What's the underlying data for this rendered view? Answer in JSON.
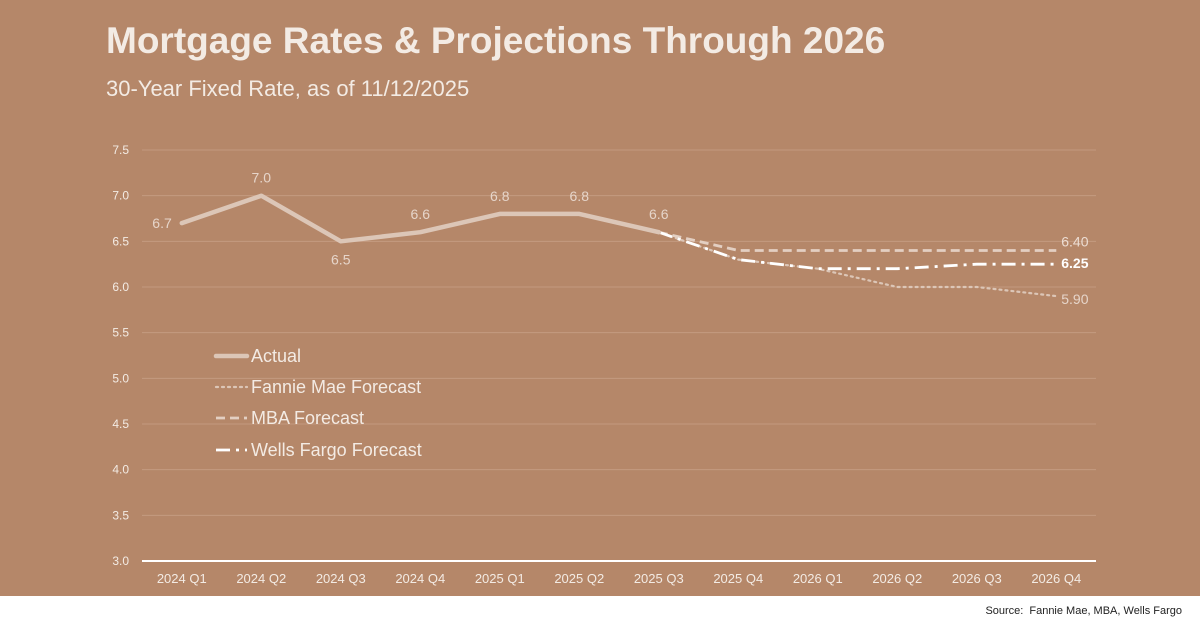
{
  "title": "Mortgage Rates & Projections Through 2026",
  "subtitle": "30-Year Fixed Rate, as of 11/12/2025",
  "source_label": "Source:",
  "source_value": "Fannie Mae, MBA, Wells Fargo",
  "colors": {
    "background": "#b58769",
    "grid": "#c49a80",
    "axis": "#ffffff",
    "tick_text": "#f3ebe4",
    "actual": "#dcc6b7",
    "fannie": "#dcc6b7",
    "mba": "#e3cfc2",
    "wells": "#ffffff"
  },
  "chart_data": {
    "type": "line",
    "title": "Mortgage Rates & Projections Through 2026",
    "subtitle": "30-Year Fixed Rate, as of 11/12/2025",
    "xlabel": "",
    "ylabel": "",
    "categories": [
      "2024 Q1",
      "2024 Q2",
      "2024 Q3",
      "2024 Q4",
      "2025 Q1",
      "2025 Q2",
      "2025 Q3",
      "2025 Q4",
      "2026 Q1",
      "2026 Q2",
      "2026 Q3",
      "2026 Q4"
    ],
    "ylim": [
      3.0,
      7.5
    ],
    "yticks": [
      "3.0",
      "3.5",
      "4.0",
      "4.5",
      "5.0",
      "5.5",
      "6.0",
      "6.5",
      "7.0",
      "7.5"
    ],
    "grid": true,
    "legend_position": "left-middle",
    "series": [
      {
        "name": "Actual",
        "style": "solid",
        "values": [
          6.7,
          7.0,
          6.5,
          6.6,
          6.8,
          6.8,
          6.6,
          null,
          null,
          null,
          null,
          null
        ],
        "labels": [
          "6.7",
          "7.0",
          "6.5",
          "6.6",
          "6.8",
          "6.8",
          "6.6",
          "",
          "",
          "",
          "",
          ""
        ]
      },
      {
        "name": "Fannie Mae Forecast",
        "style": "dotted",
        "values": [
          null,
          null,
          null,
          null,
          null,
          null,
          6.6,
          6.3,
          6.2,
          6.0,
          6.0,
          5.9
        ],
        "labels": [
          "",
          "",
          "",
          "",
          "",
          "",
          "",
          "",
          "",
          "",
          "",
          "5.90"
        ]
      },
      {
        "name": "MBA Forecast",
        "style": "dashed",
        "values": [
          null,
          null,
          null,
          null,
          null,
          null,
          6.6,
          6.4,
          6.4,
          6.4,
          6.4,
          6.4
        ],
        "labels": [
          "",
          "",
          "",
          "",
          "",
          "",
          "",
          "",
          "",
          "",
          "",
          "6.40"
        ]
      },
      {
        "name": "Wells Fargo Forecast",
        "style": "dashdot",
        "values": [
          null,
          null,
          null,
          null,
          null,
          null,
          6.6,
          6.3,
          6.2,
          6.2,
          6.25,
          6.25
        ],
        "labels": [
          "",
          "",
          "",
          "",
          "",
          "",
          "",
          "",
          "",
          "",
          "",
          "6.25"
        ]
      }
    ]
  }
}
